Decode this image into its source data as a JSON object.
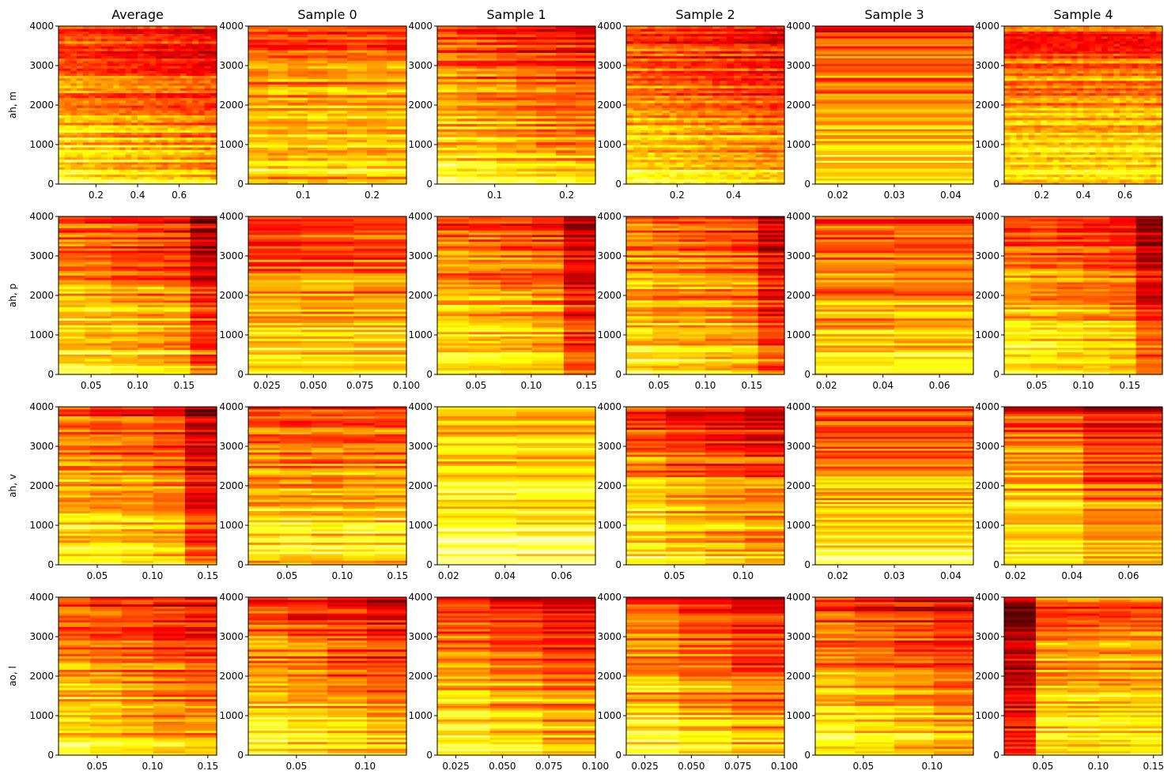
{
  "figure": {
    "colormap": "hot",
    "column_titles": [
      "Average",
      "Sample 0",
      "Sample 1",
      "Sample 2",
      "Sample 3",
      "Sample 4"
    ],
    "row_labels": [
      "ah, m",
      "ah, p",
      "ah, v",
      "ao, l"
    ]
  },
  "chart_data": [
    {
      "type": "heatmap",
      "row": 0,
      "col": 0,
      "title": "Average",
      "ylabel": "ah, m",
      "xlim": [
        0.02,
        0.78
      ],
      "ylim": [
        0,
        4000
      ],
      "xticks": [
        0.2,
        0.4,
        0.6
      ],
      "xtick_labels": [
        "0.2",
        "0.4",
        "0.6"
      ],
      "yticks": [
        0,
        1000,
        2000,
        3000,
        4000
      ],
      "ytick_labels": [
        "0",
        "1000",
        "2000",
        "3000",
        "4000"
      ],
      "n_cols": 26,
      "n_rows": 64,
      "pattern": "decay",
      "seed": 11
    },
    {
      "type": "heatmap",
      "row": 0,
      "col": 1,
      "title": "Sample 0",
      "xlim": [
        0.02,
        0.25
      ],
      "ylim": [
        0,
        4000
      ],
      "xticks": [
        0.1,
        0.2
      ],
      "xtick_labels": [
        "0.1",
        "0.2"
      ],
      "yticks": [
        0,
        1000,
        2000,
        3000,
        4000
      ],
      "ytick_labels": [
        "0",
        "1000",
        "2000",
        "3000",
        "4000"
      ],
      "n_cols": 8,
      "n_rows": 60,
      "pattern": "band",
      "seed": 12
    },
    {
      "type": "heatmap",
      "row": 0,
      "col": 2,
      "title": "Sample 1",
      "xlim": [
        0.02,
        0.24
      ],
      "ylim": [
        0,
        4000
      ],
      "xticks": [
        0.1,
        0.2
      ],
      "xtick_labels": [
        "0.1",
        "0.2"
      ],
      "yticks": [
        0,
        1000,
        2000,
        3000,
        4000
      ],
      "ytick_labels": [
        "0",
        "1000",
        "2000",
        "3000",
        "4000"
      ],
      "n_cols": 8,
      "n_rows": 60,
      "pattern": "decay",
      "seed": 13
    },
    {
      "type": "heatmap",
      "row": 0,
      "col": 3,
      "title": "Sample 2",
      "xlim": [
        0.02,
        0.58
      ],
      "ylim": [
        0,
        4000
      ],
      "xticks": [
        0.2,
        0.4
      ],
      "xtick_labels": [
        "0.2",
        "0.4"
      ],
      "yticks": [
        0,
        1000,
        2000,
        3000,
        4000
      ],
      "ytick_labels": [
        "0",
        "1000",
        "2000",
        "3000",
        "4000"
      ],
      "n_cols": 22,
      "n_rows": 64,
      "pattern": "decay",
      "seed": 14
    },
    {
      "type": "heatmap",
      "row": 0,
      "col": 4,
      "title": "Sample 3",
      "xlim": [
        0.016,
        0.044
      ],
      "ylim": [
        0,
        4000
      ],
      "xticks": [
        0.02,
        0.03,
        0.04
      ],
      "xtick_labels": [
        "0.02",
        "0.03",
        "0.04"
      ],
      "yticks": [
        0,
        1000,
        2000,
        3000,
        4000
      ],
      "ytick_labels": [
        "0",
        "1000",
        "2000",
        "3000",
        "4000"
      ],
      "n_cols": 1,
      "n_rows": 80,
      "pattern": "flat",
      "seed": 15
    },
    {
      "type": "heatmap",
      "row": 0,
      "col": 5,
      "title": "Sample 4",
      "xlim": [
        0.02,
        0.78
      ],
      "ylim": [
        0,
        4000
      ],
      "xticks": [
        0.2,
        0.4,
        0.6
      ],
      "xtick_labels": [
        "0.2",
        "0.4",
        "0.6"
      ],
      "yticks": [
        0,
        1000,
        2000,
        3000,
        4000
      ],
      "ytick_labels": [
        "0",
        "1000",
        "2000",
        "3000",
        "4000"
      ],
      "n_cols": 26,
      "n_rows": 64,
      "pattern": "band",
      "seed": 16
    },
    {
      "type": "heatmap",
      "row": 1,
      "col": 0,
      "ylabel": "ah, p",
      "xlim": [
        0.015,
        0.185
      ],
      "ylim": [
        0,
        4000
      ],
      "xticks": [
        0.05,
        0.1,
        0.15
      ],
      "xtick_labels": [
        "0.05",
        "0.10",
        "0.15"
      ],
      "yticks": [
        0,
        1000,
        2000,
        3000,
        4000
      ],
      "ytick_labels": [
        "0",
        "1000",
        "2000",
        "3000",
        "4000"
      ],
      "n_cols": 6,
      "n_rows": 70,
      "pattern": "decay_dark_end",
      "seed": 21
    },
    {
      "type": "heatmap",
      "row": 1,
      "col": 1,
      "xlim": [
        0.015,
        0.1
      ],
      "ylim": [
        0,
        4000
      ],
      "xticks": [
        0.025,
        0.05,
        0.075,
        0.1
      ],
      "xtick_labels": [
        "0.025",
        "0.050",
        "0.075",
        "0.100"
      ],
      "yticks": [
        0,
        1000,
        2000,
        3000,
        4000
      ],
      "ytick_labels": [
        "0",
        "1000",
        "2000",
        "3000",
        "4000"
      ],
      "n_cols": 3,
      "n_rows": 70,
      "pattern": "flat",
      "seed": 22
    },
    {
      "type": "heatmap",
      "row": 1,
      "col": 2,
      "xlim": [
        0.015,
        0.158
      ],
      "ylim": [
        0,
        4000
      ],
      "xticks": [
        0.05,
        0.1,
        0.15
      ],
      "xtick_labels": [
        "0.05",
        "0.10",
        "0.15"
      ],
      "yticks": [
        0,
        1000,
        2000,
        3000,
        4000
      ],
      "ytick_labels": [
        "0",
        "1000",
        "2000",
        "3000",
        "4000"
      ],
      "n_cols": 5,
      "n_rows": 70,
      "pattern": "decay_dark_end",
      "seed": 23
    },
    {
      "type": "heatmap",
      "row": 1,
      "col": 3,
      "xlim": [
        0.015,
        0.185
      ],
      "ylim": [
        0,
        4000
      ],
      "xticks": [
        0.05,
        0.1,
        0.15
      ],
      "xtick_labels": [
        "0.05",
        "0.10",
        "0.15"
      ],
      "yticks": [
        0,
        1000,
        2000,
        3000,
        4000
      ],
      "ytick_labels": [
        "0",
        "1000",
        "2000",
        "3000",
        "4000"
      ],
      "n_cols": 6,
      "n_rows": 70,
      "pattern": "decay_dark_end",
      "seed": 24
    },
    {
      "type": "heatmap",
      "row": 1,
      "col": 4,
      "xlim": [
        0.016,
        0.072
      ],
      "ylim": [
        0,
        4000
      ],
      "xticks": [
        0.02,
        0.04,
        0.06
      ],
      "xtick_labels": [
        "0.02",
        "0.04",
        "0.06"
      ],
      "yticks": [
        0,
        1000,
        2000,
        3000,
        4000
      ],
      "ytick_labels": [
        "0",
        "1000",
        "2000",
        "3000",
        "4000"
      ],
      "n_cols": 2,
      "n_rows": 70,
      "pattern": "flat",
      "seed": 25
    },
    {
      "type": "heatmap",
      "row": 1,
      "col": 5,
      "xlim": [
        0.015,
        0.185
      ],
      "ylim": [
        0,
        4000
      ],
      "xticks": [
        0.05,
        0.1,
        0.15
      ],
      "xtick_labels": [
        "0.05",
        "0.10",
        "0.15"
      ],
      "yticks": [
        0,
        1000,
        2000,
        3000,
        4000
      ],
      "ytick_labels": [
        "0",
        "1000",
        "2000",
        "3000",
        "4000"
      ],
      "n_cols": 6,
      "n_rows": 70,
      "pattern": "decay_dark_end",
      "seed": 26
    },
    {
      "type": "heatmap",
      "row": 2,
      "col": 0,
      "ylabel": "ah, v",
      "xlim": [
        0.015,
        0.158
      ],
      "ylim": [
        0,
        4000
      ],
      "xticks": [
        0.05,
        0.1,
        0.15
      ],
      "xtick_labels": [
        "0.05",
        "0.10",
        "0.15"
      ],
      "yticks": [
        0,
        1000,
        2000,
        3000,
        4000
      ],
      "ytick_labels": [
        "0",
        "1000",
        "2000",
        "3000",
        "4000"
      ],
      "n_cols": 5,
      "n_rows": 70,
      "pattern": "decay_dark_end",
      "seed": 31
    },
    {
      "type": "heatmap",
      "row": 2,
      "col": 1,
      "xlim": [
        0.015,
        0.158
      ],
      "ylim": [
        0,
        4000
      ],
      "xticks": [
        0.05,
        0.1,
        0.15
      ],
      "xtick_labels": [
        "0.05",
        "0.10",
        "0.15"
      ],
      "yticks": [
        0,
        1000,
        2000,
        3000,
        4000
      ],
      "ytick_labels": [
        "0",
        "1000",
        "2000",
        "3000",
        "4000"
      ],
      "n_cols": 5,
      "n_rows": 70,
      "pattern": "band",
      "seed": 32
    },
    {
      "type": "heatmap",
      "row": 2,
      "col": 2,
      "xlim": [
        0.016,
        0.072
      ],
      "ylim": [
        0,
        4000
      ],
      "xticks": [
        0.02,
        0.04,
        0.06
      ],
      "xtick_labels": [
        "0.02",
        "0.04",
        "0.06"
      ],
      "yticks": [
        0,
        1000,
        2000,
        3000,
        4000
      ],
      "ytick_labels": [
        "0",
        "1000",
        "2000",
        "3000",
        "4000"
      ],
      "n_cols": 2,
      "n_rows": 70,
      "pattern": "bright",
      "seed": 33
    },
    {
      "type": "heatmap",
      "row": 2,
      "col": 3,
      "xlim": [
        0.015,
        0.13
      ],
      "ylim": [
        0,
        4000
      ],
      "xticks": [
        0.05,
        0.1
      ],
      "xtick_labels": [
        "0.05",
        "0.10"
      ],
      "yticks": [
        0,
        1000,
        2000,
        3000,
        4000
      ],
      "ytick_labels": [
        "0",
        "1000",
        "2000",
        "3000",
        "4000"
      ],
      "n_cols": 4,
      "n_rows": 70,
      "pattern": "decay",
      "seed": 34
    },
    {
      "type": "heatmap",
      "row": 2,
      "col": 4,
      "xlim": [
        0.016,
        0.044
      ],
      "ylim": [
        0,
        4000
      ],
      "xticks": [
        0.02,
        0.03,
        0.04
      ],
      "xtick_labels": [
        "0.02",
        "0.03",
        "0.04"
      ],
      "yticks": [
        0,
        1000,
        2000,
        3000,
        4000
      ],
      "ytick_labels": [
        "0",
        "1000",
        "2000",
        "3000",
        "4000"
      ],
      "n_cols": 1,
      "n_rows": 80,
      "pattern": "decay",
      "seed": 35
    },
    {
      "type": "heatmap",
      "row": 2,
      "col": 5,
      "xlim": [
        0.016,
        0.072
      ],
      "ylim": [
        0,
        4000
      ],
      "xticks": [
        0.02,
        0.04,
        0.06
      ],
      "xtick_labels": [
        "0.02",
        "0.04",
        "0.06"
      ],
      "yticks": [
        0,
        1000,
        2000,
        3000,
        4000
      ],
      "ytick_labels": [
        "0",
        "1000",
        "2000",
        "3000",
        "4000"
      ],
      "n_cols": 2,
      "n_rows": 70,
      "pattern": "decay",
      "seed": 36
    },
    {
      "type": "heatmap",
      "row": 3,
      "col": 0,
      "ylabel": "ao, l",
      "xlim": [
        0.015,
        0.158
      ],
      "ylim": [
        0,
        4000
      ],
      "xticks": [
        0.05,
        0.1,
        0.15
      ],
      "xtick_labels": [
        "0.05",
        "0.10",
        "0.15"
      ],
      "yticks": [
        0,
        1000,
        2000,
        3000,
        4000
      ],
      "ytick_labels": [
        "0",
        "1000",
        "2000",
        "3000",
        "4000"
      ],
      "n_cols": 5,
      "n_rows": 70,
      "pattern": "decay",
      "seed": 41
    },
    {
      "type": "heatmap",
      "row": 3,
      "col": 1,
      "xlim": [
        0.015,
        0.13
      ],
      "ylim": [
        0,
        4000
      ],
      "xticks": [
        0.05,
        0.1
      ],
      "xtick_labels": [
        "0.05",
        "0.10"
      ],
      "yticks": [
        0,
        1000,
        2000,
        3000,
        4000
      ],
      "ytick_labels": [
        "0",
        "1000",
        "2000",
        "3000",
        "4000"
      ],
      "n_cols": 4,
      "n_rows": 70,
      "pattern": "decay",
      "seed": 42
    },
    {
      "type": "heatmap",
      "row": 3,
      "col": 2,
      "xlim": [
        0.015,
        0.1
      ],
      "ylim": [
        0,
        4000
      ],
      "xticks": [
        0.025,
        0.05,
        0.075,
        0.1
      ],
      "xtick_labels": [
        "0.025",
        "0.050",
        "0.075",
        "0.100"
      ],
      "yticks": [
        0,
        1000,
        2000,
        3000,
        4000
      ],
      "ytick_labels": [
        "0",
        "1000",
        "2000",
        "3000",
        "4000"
      ],
      "n_cols": 3,
      "n_rows": 70,
      "pattern": "decay",
      "seed": 43
    },
    {
      "type": "heatmap",
      "row": 3,
      "col": 3,
      "xlim": [
        0.015,
        0.1
      ],
      "ylim": [
        0,
        4000
      ],
      "xticks": [
        0.025,
        0.05,
        0.075,
        0.1
      ],
      "xtick_labels": [
        "0.025",
        "0.050",
        "0.075",
        "0.100"
      ],
      "yticks": [
        0,
        1000,
        2000,
        3000,
        4000
      ],
      "ytick_labels": [
        "0",
        "1000",
        "2000",
        "3000",
        "4000"
      ],
      "n_cols": 3,
      "n_rows": 70,
      "pattern": "decay",
      "seed": 44
    },
    {
      "type": "heatmap",
      "row": 3,
      "col": 4,
      "xlim": [
        0.015,
        0.13
      ],
      "ylim": [
        0,
        4000
      ],
      "xticks": [
        0.05,
        0.1
      ],
      "xtick_labels": [
        "0.05",
        "0.10"
      ],
      "yticks": [
        0,
        1000,
        2000,
        3000,
        4000
      ],
      "ytick_labels": [
        "0",
        "1000",
        "2000",
        "3000",
        "4000"
      ],
      "n_cols": 4,
      "n_rows": 70,
      "pattern": "decay",
      "seed": 45
    },
    {
      "type": "heatmap",
      "row": 3,
      "col": 5,
      "xlim": [
        0.015,
        0.158
      ],
      "ylim": [
        0,
        4000
      ],
      "xticks": [
        0.05,
        0.1,
        0.15
      ],
      "xtick_labels": [
        "0.05",
        "0.10",
        "0.15"
      ],
      "yticks": [
        0,
        1000,
        2000,
        3000,
        4000
      ],
      "ytick_labels": [
        "0",
        "1000",
        "2000",
        "3000",
        "4000"
      ],
      "n_cols": 5,
      "n_rows": 70,
      "pattern": "dark_start",
      "seed": 46
    }
  ]
}
